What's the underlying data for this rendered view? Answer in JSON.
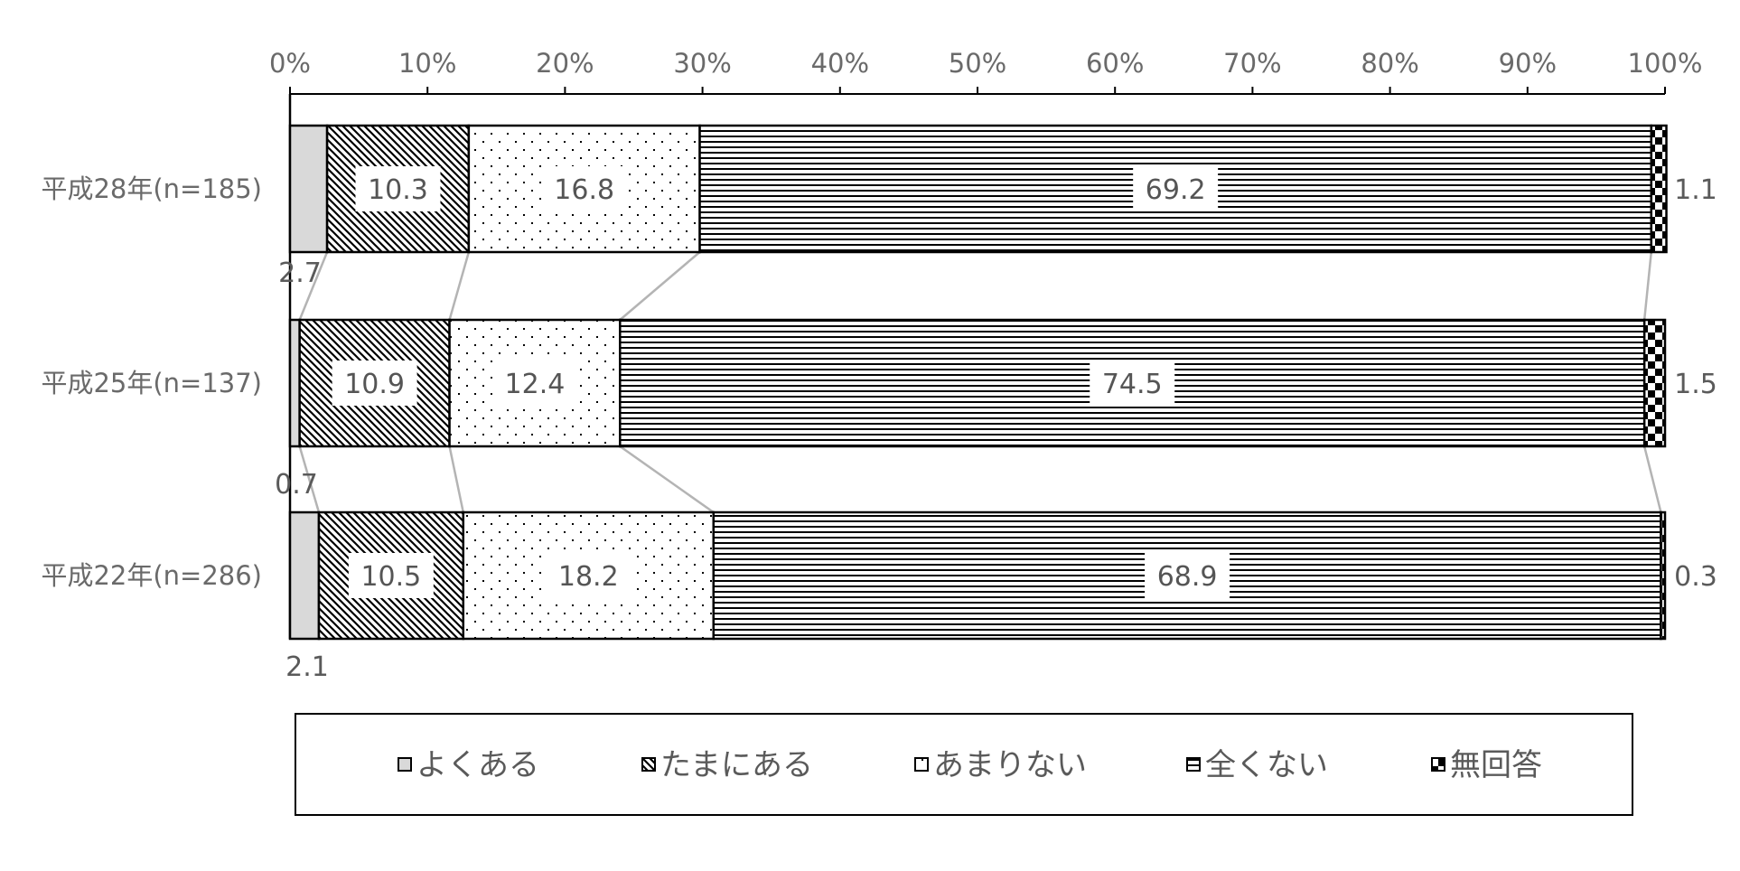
{
  "chart_data": {
    "type": "bar",
    "orientation": "horizontal",
    "stacked": "percent",
    "title": "",
    "xlabel": "",
    "ylabel": "",
    "xlim": [
      0,
      100
    ],
    "x_ticks": [
      "0%",
      "10%",
      "20%",
      "30%",
      "40%",
      "50%",
      "60%",
      "70%",
      "80%",
      "90%",
      "100%"
    ],
    "categories": [
      "平成28年(n=185)",
      "平成25年(n=137)",
      "平成22年(n=286)"
    ],
    "series": [
      {
        "name": "よくある",
        "values": [
          2.7,
          0.7,
          2.1
        ],
        "labels": [
          "2.7",
          "0.7",
          "2.1"
        ],
        "pattern": "solid-gray"
      },
      {
        "name": "たまにある",
        "values": [
          10.3,
          10.9,
          10.5
        ],
        "labels": [
          "10.3",
          "10.9",
          "10.5"
        ],
        "pattern": "diagonal-hatch"
      },
      {
        "name": "あまりない",
        "values": [
          16.8,
          12.4,
          18.2
        ],
        "labels": [
          "16.8",
          "12.4",
          "18.2"
        ],
        "pattern": "dots"
      },
      {
        "name": "全くない",
        "values": [
          69.2,
          74.5,
          68.9
        ],
        "labels": [
          "69.2",
          "74.5",
          "68.9"
        ],
        "pattern": "horizontal-lines"
      },
      {
        "name": "無回答",
        "values": [
          1.1,
          1.5,
          0.3
        ],
        "labels": [
          "1.1",
          "1.5",
          "0.3"
        ],
        "pattern": "checker"
      }
    ],
    "legend_position": "bottom",
    "connector_lines": true,
    "grid": false
  }
}
